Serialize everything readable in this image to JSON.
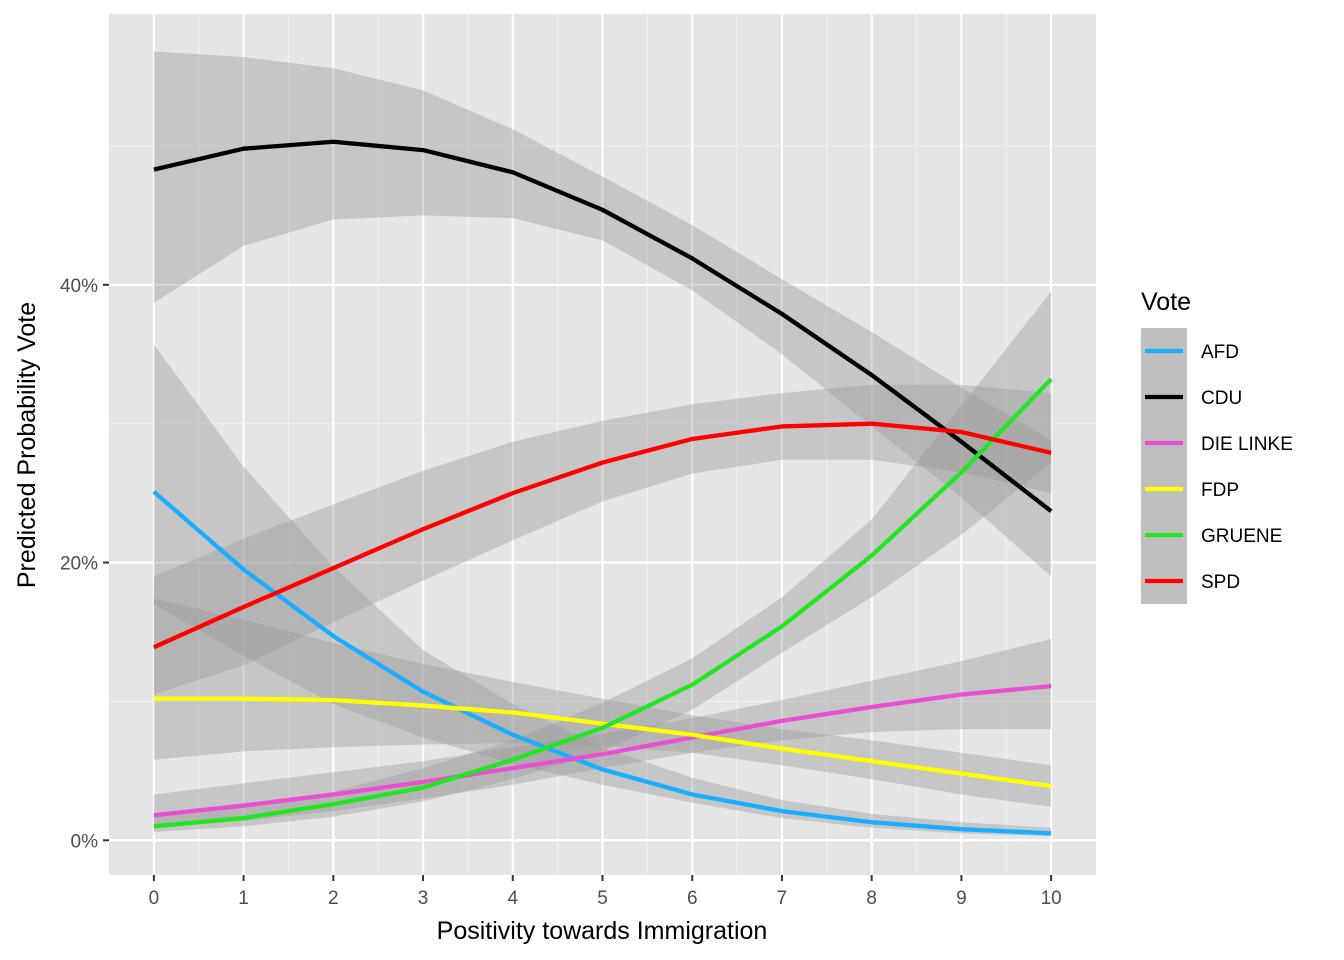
{
  "chart_data": {
    "type": "line",
    "xlabel": "Positivity towards Immigration",
    "ylabel": "Predicted Probability Vote",
    "x": [
      0,
      1,
      2,
      3,
      4,
      5,
      6,
      7,
      8,
      9,
      10
    ],
    "xlim": [
      -0.5,
      10.5
    ],
    "ylim": [
      -0.025,
      0.595
    ],
    "x_ticks": [
      "0",
      "1",
      "2",
      "3",
      "4",
      "5",
      "6",
      "7",
      "8",
      "9",
      "10"
    ],
    "y_ticks": [
      {
        "value": 0,
        "label": "0%"
      },
      {
        "value": 0.2,
        "label": "20%"
      },
      {
        "value": 0.4,
        "label": "40%"
      }
    ],
    "grid": true,
    "legend": {
      "title": "Vote",
      "position": "right"
    },
    "series": [
      {
        "name": "AFD",
        "color": "#1aaeff",
        "values": [
          0.251,
          0.195,
          0.147,
          0.107,
          0.076,
          0.051,
          0.033,
          0.021,
          0.013,
          0.008,
          0.005
        ],
        "lower": [
          0.17,
          0.133,
          0.098,
          0.074,
          0.055,
          0.04,
          0.027,
          0.016,
          0.009,
          0.005,
          0.003
        ],
        "upper": [
          0.357,
          0.269,
          0.197,
          0.137,
          0.098,
          0.067,
          0.045,
          0.029,
          0.019,
          0.013,
          0.009
        ]
      },
      {
        "name": "CDU",
        "color": "#000000",
        "values": [
          0.483,
          0.498,
          0.503,
          0.497,
          0.481,
          0.454,
          0.419,
          0.379,
          0.335,
          0.287,
          0.237
        ],
        "lower": [
          0.387,
          0.428,
          0.447,
          0.45,
          0.448,
          0.432,
          0.396,
          0.35,
          0.298,
          0.247,
          0.19
        ],
        "upper": [
          0.568,
          0.564,
          0.556,
          0.54,
          0.512,
          0.478,
          0.443,
          0.404,
          0.366,
          0.326,
          0.288
        ]
      },
      {
        "name": "DIE LINKE",
        "color": "#e84fd3",
        "values": [
          0.018,
          0.025,
          0.033,
          0.042,
          0.052,
          0.062,
          0.074,
          0.086,
          0.096,
          0.105,
          0.111
        ],
        "lower": [
          0.01,
          0.014,
          0.021,
          0.03,
          0.04,
          0.052,
          0.063,
          0.072,
          0.078,
          0.08,
          0.08
        ],
        "upper": [
          0.033,
          0.041,
          0.049,
          0.057,
          0.067,
          0.077,
          0.088,
          0.101,
          0.115,
          0.129,
          0.145
        ]
      },
      {
        "name": "FDP",
        "color": "#ffff00",
        "values": [
          0.102,
          0.102,
          0.101,
          0.097,
          0.092,
          0.084,
          0.076,
          0.066,
          0.057,
          0.048,
          0.039
        ],
        "lower": [
          0.058,
          0.064,
          0.067,
          0.069,
          0.07,
          0.068,
          0.063,
          0.054,
          0.044,
          0.033,
          0.024
        ],
        "upper": [
          0.174,
          0.159,
          0.142,
          0.127,
          0.114,
          0.102,
          0.09,
          0.08,
          0.072,
          0.063,
          0.054
        ]
      },
      {
        "name": "GRUENE",
        "color": "#22e622",
        "values": [
          0.01,
          0.016,
          0.026,
          0.038,
          0.058,
          0.081,
          0.112,
          0.154,
          0.205,
          0.265,
          0.332
        ],
        "lower": [
          0.006,
          0.01,
          0.017,
          0.028,
          0.044,
          0.064,
          0.094,
          0.135,
          0.175,
          0.22,
          0.272
        ],
        "upper": [
          0.018,
          0.025,
          0.035,
          0.052,
          0.072,
          0.099,
          0.131,
          0.175,
          0.231,
          0.313,
          0.395
        ]
      },
      {
        "name": "SPD",
        "color": "#ff0000",
        "values": [
          0.139,
          0.168,
          0.196,
          0.224,
          0.25,
          0.272,
          0.289,
          0.298,
          0.3,
          0.294,
          0.279
        ],
        "lower": [
          0.105,
          0.126,
          0.157,
          0.187,
          0.216,
          0.244,
          0.264,
          0.274,
          0.274,
          0.265,
          0.25
        ],
        "upper": [
          0.19,
          0.217,
          0.242,
          0.266,
          0.287,
          0.302,
          0.314,
          0.322,
          0.328,
          0.328,
          0.322
        ]
      }
    ]
  }
}
